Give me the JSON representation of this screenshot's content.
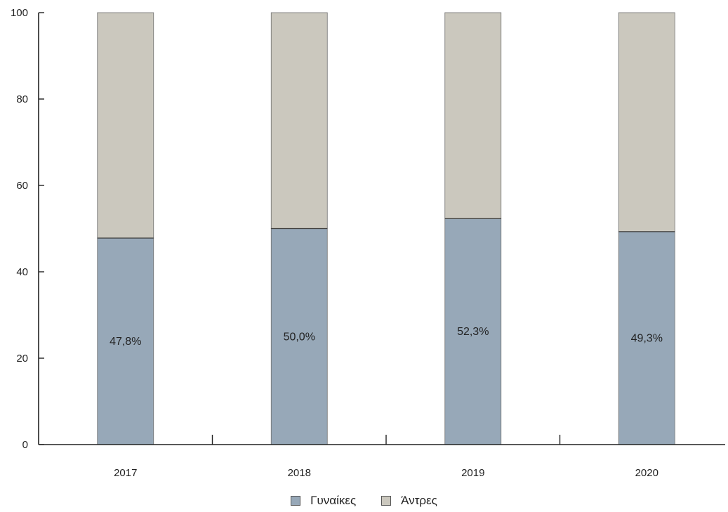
{
  "chart_data": {
    "type": "bar",
    "stacked": true,
    "categories": [
      "2017",
      "2018",
      "2019",
      "2020"
    ],
    "series": [
      {
        "name": "Γυναίκες",
        "values": [
          47.8,
          50.0,
          52.3,
          49.3
        ],
        "color": "#97a8b8"
      },
      {
        "name": "Άντρες",
        "values": [
          52.2,
          50.0,
          47.7,
          50.7
        ],
        "color": "#cbc8be"
      }
    ],
    "data_labels": [
      "47,8%",
      "50,0%",
      "52,3%",
      "49,3%"
    ],
    "ylim": [
      0,
      100
    ],
    "yticks": [
      "0",
      "20",
      "40",
      "60",
      "80",
      "100"
    ],
    "grid": false,
    "legend_position": "bottom",
    "title": "",
    "xlabel": "",
    "ylabel": ""
  }
}
